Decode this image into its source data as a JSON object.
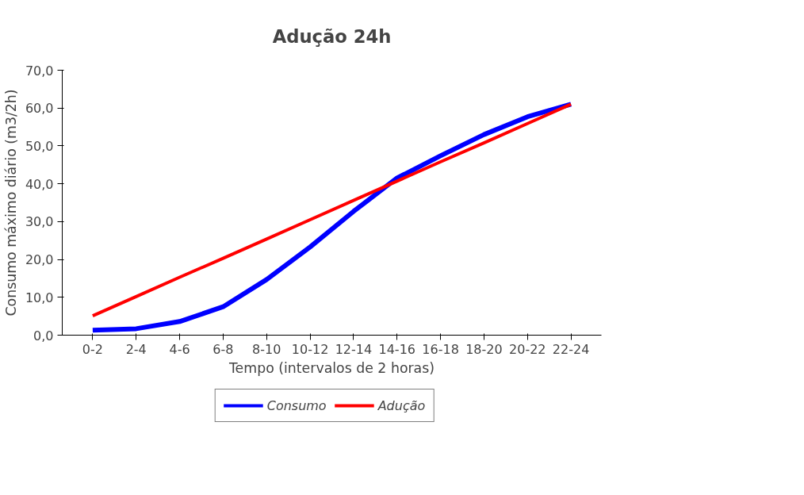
{
  "chart_data": {
    "type": "line",
    "title": "Adução 24h",
    "xlabel": "Tempo (intervalos de 2 horas)",
    "ylabel": "Consumo máximo diário (m3/2h)",
    "categories": [
      "0-2",
      "2-4",
      "4-6",
      "6-8",
      "8-10",
      "10-12",
      "12-14",
      "14-16",
      "16-18",
      "18-20",
      "20-22",
      "22-24"
    ],
    "series": [
      {
        "name": "Consumo",
        "color": "#0000ff",
        "values": [
          1.3,
          1.7,
          3.6,
          7.5,
          14.7,
          23.3,
          32.7,
          41.5,
          47.4,
          53.0,
          57.7,
          61.0
        ]
      },
      {
        "name": "Adução",
        "color": "#ff0000",
        "values": [
          5.1,
          10.2,
          15.3,
          20.3,
          25.4,
          30.5,
          35.6,
          40.7,
          45.8,
          50.8,
          55.9,
          61.0
        ]
      }
    ],
    "ylim": [
      0,
      70
    ],
    "yticks": [
      {
        "value": 0,
        "label": "0,0"
      },
      {
        "value": 10,
        "label": "10,0"
      },
      {
        "value": 20,
        "label": "20,0"
      },
      {
        "value": 30,
        "label": "30,0"
      },
      {
        "value": 40,
        "label": "40,0"
      },
      {
        "value": 50,
        "label": "50,0"
      },
      {
        "value": 60,
        "label": "60,0"
      },
      {
        "value": 70,
        "label": "70,0"
      }
    ],
    "grid": false,
    "legend": "bottom",
    "marker": "none",
    "line_style": "solid"
  }
}
